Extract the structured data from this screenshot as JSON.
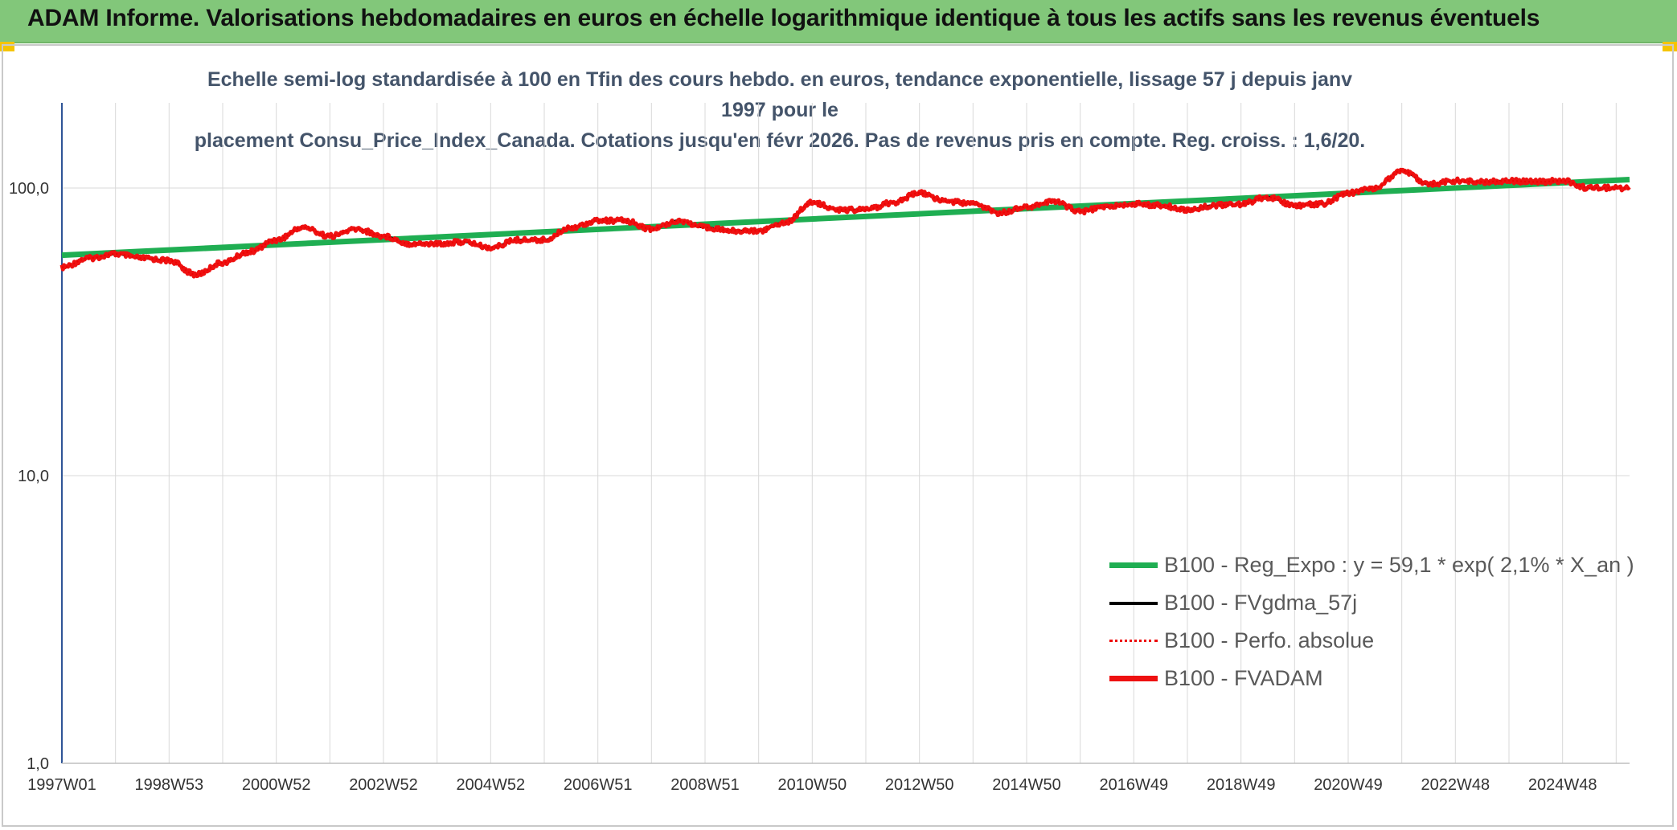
{
  "header": {
    "title": "ADAM Informe. Valorisations hebdomadaires en euros en échelle logarithmique identique à tous les actifs sans les revenus éventuels"
  },
  "colors": {
    "banner": "#82c77a",
    "reg_expo": "#1fae52",
    "fvgdma": "#000000",
    "perfo": "#ee0000",
    "fvadam": "#ee1111",
    "title_text": "#44546a"
  },
  "chart_data": {
    "type": "line",
    "title_line1": "Echelle semi-log standardisée à 100 en Tfin des cours hebdo. en euros, tendance exponentielle, lissage 57 j depuis janv 1997 pour le",
    "title_line2": "placement Consu_Price_Index_Canada. Cotations jusqu'en févr 2026. Pas de revenus pris en compte. Reg. croiss. : 1,6/20.",
    "yscale": "log",
    "ylim": [
      1,
      200
    ],
    "y_tick_labels": [
      "100,0",
      "10,0",
      "1,0"
    ],
    "y_tick_values": [
      100,
      10,
      1
    ],
    "xlim": [
      1997.0,
      2026.25
    ],
    "x_tick_labels": [
      "1997W01",
      "1998W53",
      "2000W52",
      "2002W52",
      "2004W52",
      "2006W51",
      "2008W51",
      "2010W50",
      "2012W50",
      "2014W50",
      "2016W49",
      "2018W49",
      "2020W49",
      "2022W48",
      "2024W48"
    ],
    "x_tick_values": [
      1997.0,
      1999.0,
      2001.0,
      2003.0,
      2005.0,
      2007.0,
      2009.0,
      2011.0,
      2013.0,
      2015.0,
      2017.0,
      2019.0,
      2021.0,
      2023.0,
      2025.0
    ],
    "grid": true,
    "legend_position": "bottom-right",
    "series": [
      {
        "name": "B100 - Reg_Expo : y = 59,1 * exp( 2,1% *  X_an )",
        "style": "green-thick",
        "x": [
          1997.0,
          2026.25
        ],
        "values": [
          58.4,
          107.0
        ]
      },
      {
        "name": "B100 - FVgdma_57j",
        "style": "black",
        "x": [
          1997.0,
          1997.5,
          1998.0,
          1998.5,
          1999.0,
          1999.5,
          2000.0,
          2000.5,
          2001.0,
          2001.5,
          2002.0,
          2002.5,
          2003.0,
          2003.5,
          2004.0,
          2004.5,
          2005.0,
          2005.5,
          2006.0,
          2006.5,
          2007.0,
          2007.5,
          2008.0,
          2008.5,
          2009.0,
          2009.5,
          2010.0,
          2010.5,
          2011.0,
          2011.5,
          2012.0,
          2012.5,
          2013.0,
          2013.5,
          2014.0,
          2014.5,
          2015.0,
          2015.5,
          2016.0,
          2016.5,
          2017.0,
          2017.5,
          2018.0,
          2018.5,
          2019.0,
          2019.5,
          2020.0,
          2020.5,
          2021.0,
          2021.5,
          2022.0,
          2022.5,
          2023.0,
          2023.5,
          2024.0,
          2024.5,
          2025.0,
          2025.5,
          2026.25
        ],
        "values": [
          53,
          57,
          59,
          57,
          56,
          50,
          55,
          60,
          66,
          73,
          68,
          72,
          68,
          64,
          64,
          65,
          62,
          66,
          66,
          73,
          77,
          77,
          72,
          77,
          73,
          71,
          71,
          76,
          89,
          84,
          84,
          89,
          96,
          90,
          88,
          82,
          86,
          90,
          83,
          86,
          88,
          87,
          84,
          87,
          88,
          93,
          87,
          88,
          96,
          100,
          115,
          103,
          106,
          105,
          106,
          105,
          106,
          100,
          100
        ]
      },
      {
        "name": "B100 - Perfo. absolue",
        "style": "red-dotted",
        "x": [
          1997.0,
          1997.5,
          1998.0,
          1998.5,
          1999.0,
          1999.5,
          2000.0,
          2000.5,
          2001.0,
          2001.5,
          2002.0,
          2002.5,
          2003.0,
          2003.5,
          2004.0,
          2004.5,
          2005.0,
          2005.5,
          2006.0,
          2006.5,
          2007.0,
          2007.5,
          2008.0,
          2008.5,
          2009.0,
          2009.5,
          2010.0,
          2010.5,
          2011.0,
          2011.5,
          2012.0,
          2012.5,
          2013.0,
          2013.5,
          2014.0,
          2014.5,
          2015.0,
          2015.5,
          2016.0,
          2016.5,
          2017.0,
          2017.5,
          2018.0,
          2018.5,
          2019.0,
          2019.5,
          2020.0,
          2020.5,
          2021.0,
          2021.5,
          2022.0,
          2022.5,
          2023.0,
          2023.5,
          2024.0,
          2024.5,
          2025.0,
          2025.5,
          2026.25
        ],
        "values": [
          53,
          57,
          59,
          57,
          56,
          50,
          55,
          60,
          66,
          73,
          68,
          72,
          68,
          64,
          64,
          65,
          62,
          66,
          66,
          73,
          77,
          77,
          72,
          77,
          73,
          71,
          71,
          76,
          89,
          84,
          84,
          89,
          96,
          90,
          88,
          82,
          86,
          90,
          83,
          86,
          88,
          87,
          84,
          87,
          88,
          93,
          87,
          88,
          96,
          100,
          115,
          103,
          106,
          105,
          106,
          105,
          106,
          100,
          100
        ]
      },
      {
        "name": "B100 - FVADAM",
        "style": "red-thick",
        "x": [
          1997.0,
          1997.5,
          1998.0,
          1998.5,
          1999.0,
          1999.5,
          2000.0,
          2000.5,
          2001.0,
          2001.5,
          2002.0,
          2002.5,
          2003.0,
          2003.5,
          2004.0,
          2004.5,
          2005.0,
          2005.5,
          2006.0,
          2006.5,
          2007.0,
          2007.5,
          2008.0,
          2008.5,
          2009.0,
          2009.5,
          2010.0,
          2010.5,
          2011.0,
          2011.5,
          2012.0,
          2012.5,
          2013.0,
          2013.5,
          2014.0,
          2014.5,
          2015.0,
          2015.5,
          2016.0,
          2016.5,
          2017.0,
          2017.5,
          2018.0,
          2018.5,
          2019.0,
          2019.5,
          2020.0,
          2020.5,
          2021.0,
          2021.5,
          2022.0,
          2022.5,
          2023.0,
          2023.5,
          2024.0,
          2024.5,
          2025.0,
          2025.5,
          2026.25
        ],
        "values": [
          53,
          57,
          59,
          57,
          56,
          50,
          55,
          60,
          66,
          73,
          68,
          72,
          68,
          64,
          64,
          65,
          62,
          66,
          66,
          73,
          77,
          77,
          72,
          77,
          73,
          71,
          71,
          76,
          89,
          84,
          84,
          89,
          96,
          90,
          88,
          82,
          86,
          90,
          83,
          86,
          88,
          87,
          84,
          87,
          88,
          93,
          87,
          88,
          96,
          100,
          115,
          103,
          106,
          105,
          106,
          105,
          106,
          100,
          100
        ]
      }
    ]
  }
}
